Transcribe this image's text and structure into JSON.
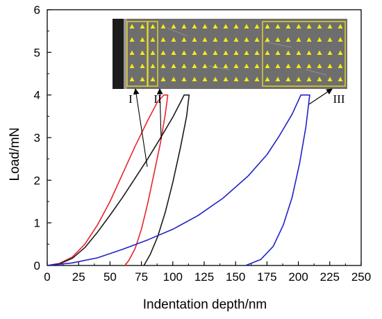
{
  "chart_data": {
    "type": "line",
    "title": "",
    "xlabel": "Indentation depth/nm",
    "ylabel": "Load/mN",
    "xlim": [
      0,
      250
    ],
    "ylim": [
      0,
      6
    ],
    "xticks": [
      0,
      25,
      50,
      75,
      100,
      125,
      150,
      175,
      200,
      225,
      250
    ],
    "yticks": [
      0,
      1,
      2,
      3,
      4,
      5,
      6
    ],
    "grid": false,
    "legend": "none",
    "series": [
      {
        "color": "#e8242b",
        "points": [
          [
            0,
            0
          ],
          [
            10,
            0.05
          ],
          [
            20,
            0.2
          ],
          [
            30,
            0.5
          ],
          [
            40,
            0.95
          ],
          [
            50,
            1.5
          ],
          [
            60,
            2.15
          ],
          [
            70,
            2.8
          ],
          [
            80,
            3.4
          ],
          [
            88,
            3.85
          ],
          [
            93,
            4.0
          ],
          [
            96,
            4.0
          ],
          [
            94,
            3.55
          ],
          [
            90,
            2.85
          ],
          [
            85,
            2.15
          ],
          [
            80,
            1.45
          ],
          [
            75,
            0.85
          ],
          [
            70,
            0.4
          ],
          [
            65,
            0.12
          ],
          [
            62,
            0
          ]
        ]
      },
      {
        "color": "#1a1a1a",
        "points": [
          [
            0,
            0
          ],
          [
            10,
            0.04
          ],
          [
            20,
            0.17
          ],
          [
            30,
            0.42
          ],
          [
            40,
            0.78
          ],
          [
            50,
            1.18
          ],
          [
            60,
            1.6
          ],
          [
            70,
            2.05
          ],
          [
            80,
            2.5
          ],
          [
            90,
            2.98
          ],
          [
            100,
            3.48
          ],
          [
            106,
            3.82
          ],
          [
            109,
            4.0
          ],
          [
            113,
            4.0
          ],
          [
            111,
            3.5
          ],
          [
            106,
            2.75
          ],
          [
            100,
            1.95
          ],
          [
            94,
            1.25
          ],
          [
            88,
            0.68
          ],
          [
            82,
            0.26
          ],
          [
            77,
            0
          ]
        ]
      },
      {
        "color": "#2020c8",
        "points": [
          [
            0,
            0
          ],
          [
            20,
            0.06
          ],
          [
            40,
            0.18
          ],
          [
            60,
            0.38
          ],
          [
            80,
            0.6
          ],
          [
            100,
            0.85
          ],
          [
            120,
            1.17
          ],
          [
            140,
            1.58
          ],
          [
            160,
            2.1
          ],
          [
            175,
            2.6
          ],
          [
            185,
            3.05
          ],
          [
            195,
            3.55
          ],
          [
            202,
            4.0
          ],
          [
            209,
            4.0
          ],
          [
            206,
            3.25
          ],
          [
            201,
            2.4
          ],
          [
            195,
            1.6
          ],
          [
            188,
            0.95
          ],
          [
            180,
            0.45
          ],
          [
            170,
            0.14
          ],
          [
            158,
            0
          ]
        ]
      }
    ],
    "annotations": [
      "I",
      "II",
      "III"
    ]
  },
  "inset": {
    "description": "indent array micrograph",
    "rows": 5,
    "cols": 21,
    "marker_color": "#f2ea1c",
    "box_color": "#e6d82a",
    "boxes": [
      {
        "label": "I",
        "col_start": 0,
        "col_end": 1
      },
      {
        "label": "II",
        "col_start": 2,
        "col_end": 2
      },
      {
        "label": "III",
        "col_start": 13,
        "col_end": 20
      }
    ]
  }
}
